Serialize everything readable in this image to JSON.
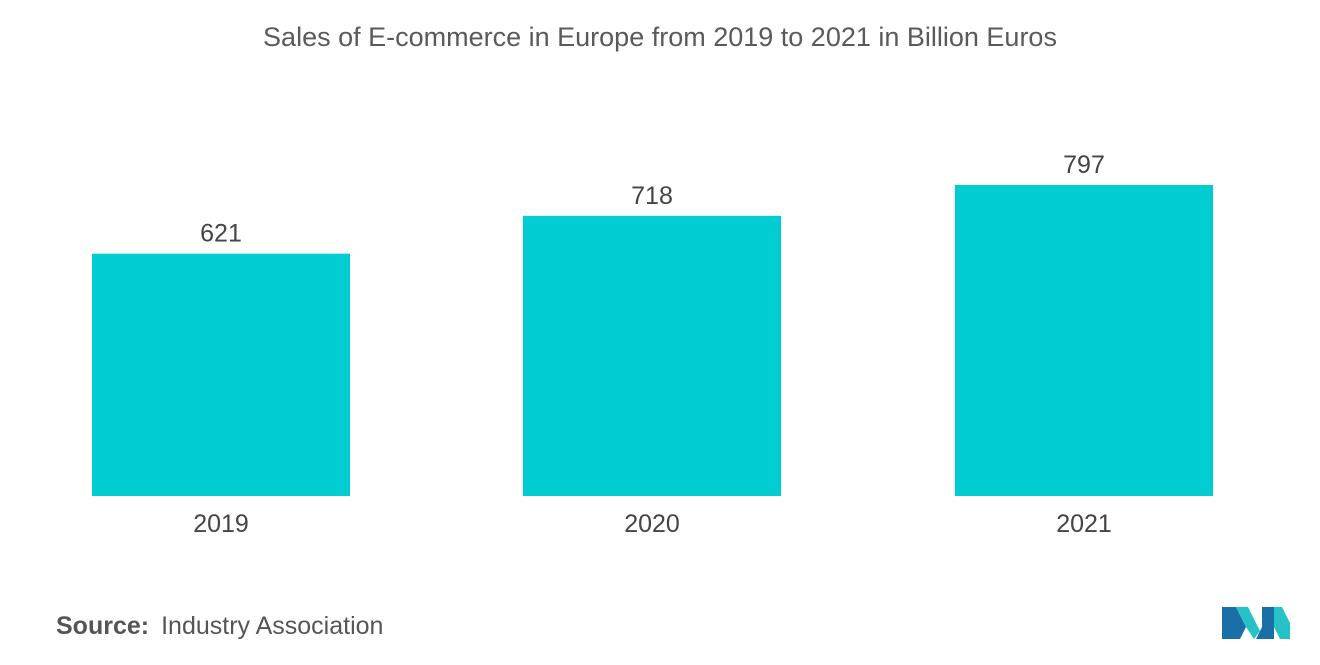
{
  "chart_data": {
    "type": "bar",
    "title": "Sales of E-commerce in Europe from 2019 to 2021 in Billion Euros",
    "categories": [
      "2019",
      "2020",
      "2021"
    ],
    "values": [
      621,
      718,
      797
    ],
    "data_labels": [
      "621",
      "718",
      "797"
    ],
    "xlabel": "",
    "ylabel": "",
    "ylim": [
      0,
      830
    ],
    "grid": false,
    "bar_color": "#00ccd1"
  },
  "source": {
    "label": "Source:",
    "text": "Industry Association"
  },
  "logo": {
    "icon": "mordor-intelligence-logo-icon",
    "colors": [
      "#1a6fa8",
      "#27c1c8"
    ]
  }
}
